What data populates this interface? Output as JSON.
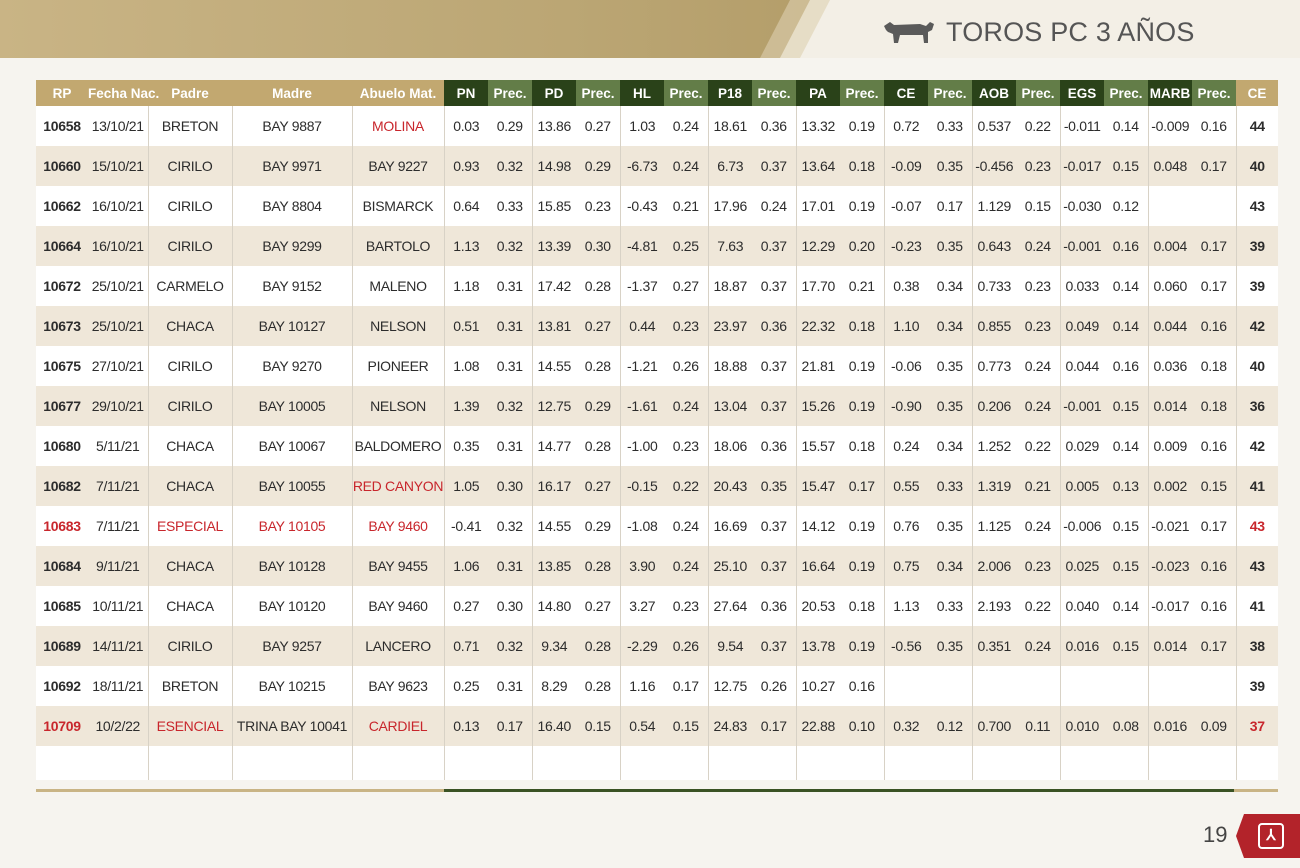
{
  "header": {
    "title": "TOROS PC 3 AÑOS",
    "icon": "bull-icon"
  },
  "page_number": "19",
  "colors": {
    "gold": "#c2a870",
    "dark_green": "#2a4219",
    "light_green": "#637d48",
    "highlight_red": "#c8262c"
  },
  "table": {
    "columns": [
      "RP",
      "Fecha Nac.",
      "Padre",
      "Madre",
      "Abuelo Mat.",
      "PN",
      "Prec.",
      "PD",
      "Prec.",
      "HL",
      "Prec.",
      "P18",
      "Prec.",
      "PA",
      "Prec.",
      "CE",
      "Prec.",
      "AOB",
      "Prec.",
      "EGS",
      "Prec.",
      "MARB",
      "Prec.",
      "CE"
    ],
    "rows": [
      {
        "rp": "10658",
        "fecha": "13/10/21",
        "padre": "BRETON",
        "madre": "BAY 9887",
        "abuelo": "MOLINA",
        "vals": [
          "0.03",
          "0.29",
          "13.86",
          "0.27",
          "1.03",
          "0.24",
          "18.61",
          "0.36",
          "13.32",
          "0.19",
          "0.72",
          "0.33",
          "0.537",
          "0.22",
          "-0.011",
          "0.14",
          "-0.009",
          "0.16"
        ],
        "ce": "44"
      },
      {
        "rp": "10660",
        "fecha": "15/10/21",
        "padre": "CIRILO",
        "madre": "BAY 9971",
        "abuelo": "BAY 9227",
        "vals": [
          "0.93",
          "0.32",
          "14.98",
          "0.29",
          "-6.73",
          "0.24",
          "6.73",
          "0.37",
          "13.64",
          "0.18",
          "-0.09",
          "0.35",
          "-0.456",
          "0.23",
          "-0.017",
          "0.15",
          "0.048",
          "0.17"
        ],
        "ce": "40"
      },
      {
        "rp": "10662",
        "fecha": "16/10/21",
        "padre": "CIRILO",
        "madre": "BAY 8804",
        "abuelo": "BISMARCK",
        "vals": [
          "0.64",
          "0.33",
          "15.85",
          "0.23",
          "-0.43",
          "0.21",
          "17.96",
          "0.24",
          "17.01",
          "0.19",
          "-0.07",
          "0.17",
          "1.129",
          "0.15",
          "-0.030",
          "0.12",
          "",
          ""
        ],
        "ce": "43"
      },
      {
        "rp": "10664",
        "fecha": "16/10/21",
        "padre": "CIRILO",
        "madre": "BAY 9299",
        "abuelo": "BARTOLO",
        "vals": [
          "1.13",
          "0.32",
          "13.39",
          "0.30",
          "-4.81",
          "0.25",
          "7.63",
          "0.37",
          "12.29",
          "0.20",
          "-0.23",
          "0.35",
          "0.643",
          "0.24",
          "-0.001",
          "0.16",
          "0.004",
          "0.17"
        ],
        "ce": "39"
      },
      {
        "rp": "10672",
        "fecha": "25/10/21",
        "padre": "CARMELO",
        "madre": "BAY 9152",
        "abuelo": "MALENO",
        "vals": [
          "1.18",
          "0.31",
          "17.42",
          "0.28",
          "-1.37",
          "0.27",
          "18.87",
          "0.37",
          "17.70",
          "0.21",
          "0.38",
          "0.34",
          "0.733",
          "0.23",
          "0.033",
          "0.14",
          "0.060",
          "0.17"
        ],
        "ce": "39"
      },
      {
        "rp": "10673",
        "fecha": "25/10/21",
        "padre": "CHACA",
        "madre": "BAY 10127",
        "abuelo": "NELSON",
        "vals": [
          "0.51",
          "0.31",
          "13.81",
          "0.27",
          "0.44",
          "0.23",
          "23.97",
          "0.36",
          "22.32",
          "0.18",
          "1.10",
          "0.34",
          "0.855",
          "0.23",
          "0.049",
          "0.14",
          "0.044",
          "0.16"
        ],
        "ce": "42"
      },
      {
        "rp": "10675",
        "fecha": "27/10/21",
        "padre": "CIRILO",
        "madre": "BAY 9270",
        "abuelo": "PIONEER",
        "vals": [
          "1.08",
          "0.31",
          "14.55",
          "0.28",
          "-1.21",
          "0.26",
          "18.88",
          "0.37",
          "21.81",
          "0.19",
          "-0.06",
          "0.35",
          "0.773",
          "0.24",
          "0.044",
          "0.16",
          "0.036",
          "0.18"
        ],
        "ce": "40"
      },
      {
        "rp": "10677",
        "fecha": "29/10/21",
        "padre": "CIRILO",
        "madre": "BAY 10005",
        "abuelo": "NELSON",
        "vals": [
          "1.39",
          "0.32",
          "12.75",
          "0.29",
          "-1.61",
          "0.24",
          "13.04",
          "0.37",
          "15.26",
          "0.19",
          "-0.90",
          "0.35",
          "0.206",
          "0.24",
          "-0.001",
          "0.15",
          "0.014",
          "0.18"
        ],
        "ce": "36"
      },
      {
        "rp": "10680",
        "fecha": "5/11/21",
        "padre": "CHACA",
        "madre": "BAY 10067",
        "abuelo": "BALDOMERO",
        "vals": [
          "0.35",
          "0.31",
          "14.77",
          "0.28",
          "-1.00",
          "0.23",
          "18.06",
          "0.36",
          "15.57",
          "0.18",
          "0.24",
          "0.34",
          "1.252",
          "0.22",
          "0.029",
          "0.14",
          "0.009",
          "0.16"
        ],
        "ce": "42"
      },
      {
        "rp": "10682",
        "fecha": "7/11/21",
        "padre": "CHACA",
        "madre": "BAY 10055",
        "abuelo": "RED CANYON",
        "vals": [
          "1.05",
          "0.30",
          "16.17",
          "0.27",
          "-0.15",
          "0.22",
          "20.43",
          "0.35",
          "15.47",
          "0.17",
          "0.55",
          "0.33",
          "1.319",
          "0.21",
          "0.005",
          "0.13",
          "0.002",
          "0.15"
        ],
        "ce": "41"
      },
      {
        "rp": "10683",
        "fecha": "7/11/21",
        "padre": "ESPECIAL",
        "madre": "BAY 10105",
        "abuelo": "BAY 9460",
        "vals": [
          "-0.41",
          "0.32",
          "14.55",
          "0.29",
          "-1.08",
          "0.24",
          "16.69",
          "0.37",
          "14.12",
          "0.19",
          "0.76",
          "0.35",
          "1.125",
          "0.24",
          "-0.006",
          "0.15",
          "-0.021",
          "0.17"
        ],
        "ce": "43"
      },
      {
        "rp": "10684",
        "fecha": "9/11/21",
        "padre": "CHACA",
        "madre": "BAY 10128",
        "abuelo": "BAY 9455",
        "vals": [
          "1.06",
          "0.31",
          "13.85",
          "0.28",
          "3.90",
          "0.24",
          "25.10",
          "0.37",
          "16.64",
          "0.19",
          "0.75",
          "0.34",
          "2.006",
          "0.23",
          "0.025",
          "0.15",
          "-0.023",
          "0.16"
        ],
        "ce": "43"
      },
      {
        "rp": "10685",
        "fecha": "10/11/21",
        "padre": "CHACA",
        "madre": "BAY 10120",
        "abuelo": "BAY 9460",
        "vals": [
          "0.27",
          "0.30",
          "14.80",
          "0.27",
          "3.27",
          "0.23",
          "27.64",
          "0.36",
          "20.53",
          "0.18",
          "1.13",
          "0.33",
          "2.193",
          "0.22",
          "0.040",
          "0.14",
          "-0.017",
          "0.16"
        ],
        "ce": "41"
      },
      {
        "rp": "10689",
        "fecha": "14/11/21",
        "padre": "CIRILO",
        "madre": "BAY 9257",
        "abuelo": "LANCERO",
        "vals": [
          "0.71",
          "0.32",
          "9.34",
          "0.28",
          "-2.29",
          "0.26",
          "9.54",
          "0.37",
          "13.78",
          "0.19",
          "-0.56",
          "0.35",
          "0.351",
          "0.24",
          "0.016",
          "0.15",
          "0.014",
          "0.17"
        ],
        "ce": "38"
      },
      {
        "rp": "10692",
        "fecha": "18/11/21",
        "padre": "BRETON",
        "madre": "BAY 10215",
        "abuelo": "BAY 9623",
        "vals": [
          "0.25",
          "0.31",
          "8.29",
          "0.28",
          "1.16",
          "0.17",
          "12.75",
          "0.26",
          "10.27",
          "0.16",
          "",
          "",
          "",
          "",
          "",
          "",
          "",
          ""
        ],
        "ce": "39"
      },
      {
        "rp": "10709",
        "fecha": "10/2/22",
        "padre": "ESENCIAL",
        "madre": "TRINA BAY 10041",
        "abuelo": "CARDIEL",
        "vals": [
          "0.13",
          "0.17",
          "16.40",
          "0.15",
          "0.54",
          "0.15",
          "24.83",
          "0.17",
          "22.88",
          "0.10",
          "0.32",
          "0.12",
          "0.700",
          "0.11",
          "0.010",
          "0.08",
          "0.016",
          "0.09"
        ],
        "ce": "37"
      }
    ],
    "red_marks": {
      "10658": [
        "abuelo"
      ],
      "10682": [
        "abuelo"
      ],
      "10683": [
        "rp",
        "padre",
        "madre",
        "abuelo",
        "ce"
      ],
      "10709": [
        "rp",
        "padre",
        "abuelo",
        "ce"
      ]
    }
  }
}
